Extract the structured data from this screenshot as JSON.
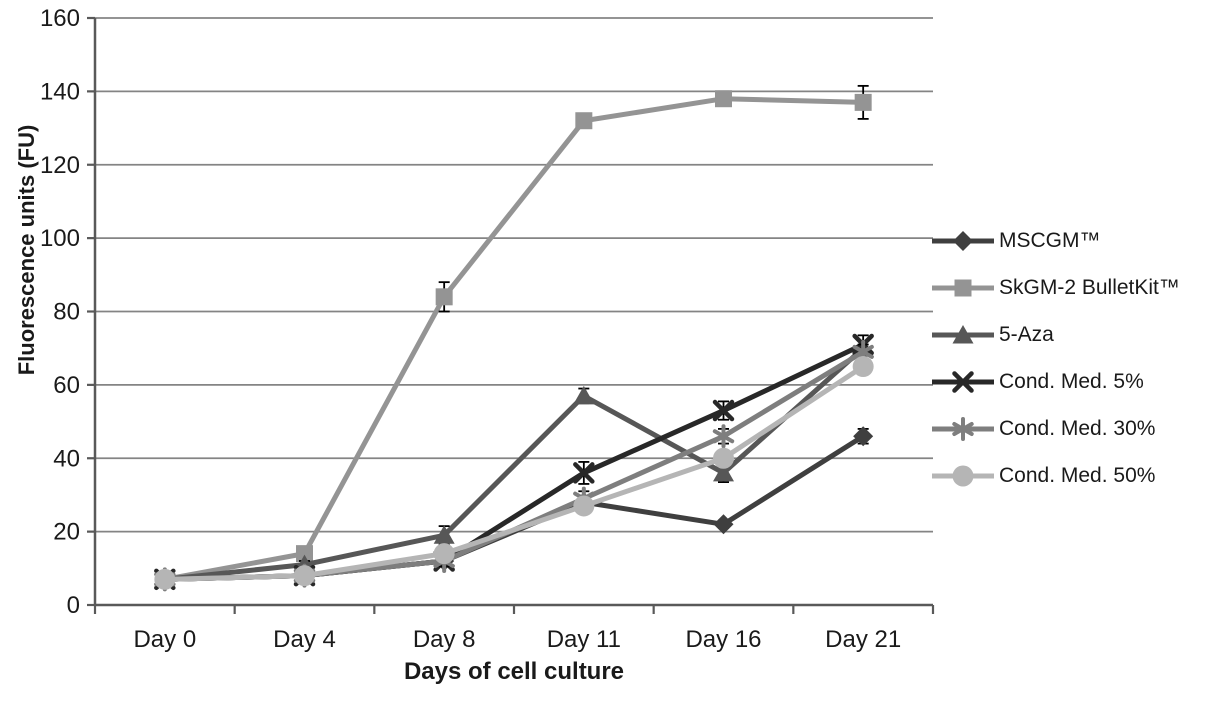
{
  "chart_data": {
    "type": "line",
    "title": "",
    "xlabel": "Days of cell culture",
    "ylabel": "Fluorescence units (FU)",
    "categories": [
      "Day 0",
      "Day 4",
      "Day 8",
      "Day 11",
      "Day 16",
      "Day 21"
    ],
    "ylim": [
      0,
      160
    ],
    "ytick_step": 20,
    "yticks": [
      0,
      20,
      40,
      60,
      80,
      100,
      120,
      140,
      160
    ],
    "grid": true,
    "legend_position": "right",
    "axis_color": "#595959",
    "grid_color": "#848484",
    "error_bar_color": "#000000",
    "series": [
      {
        "name": "MSCGM™",
        "marker": "diamond",
        "color": "#3f3f3f",
        "values": [
          7,
          8,
          12,
          28,
          22,
          46
        ],
        "errors": [
          0.5,
          0.5,
          1,
          1,
          1,
          2
        ]
      },
      {
        "name": "SkGM-2 BulletKit™",
        "marker": "square",
        "color": "#949494",
        "values": [
          7,
          14,
          84,
          132,
          138,
          137
        ],
        "errors": [
          1,
          1,
          4,
          1.5,
          2,
          4.5
        ]
      },
      {
        "name": "5-Aza",
        "marker": "triangle",
        "color": "#575757",
        "values": [
          7,
          11,
          19,
          57,
          36,
          70
        ],
        "errors": [
          0.5,
          1,
          2.5,
          2,
          2.5,
          2
        ]
      },
      {
        "name": "Cond. Med. 5%",
        "marker": "x",
        "color": "#282828",
        "values": [
          7,
          8,
          12,
          36,
          53,
          71
        ],
        "errors": [
          0.5,
          1.5,
          1.5,
          3,
          2.5,
          2.5
        ]
      },
      {
        "name": "Cond. Med. 30%",
        "marker": "asterisk",
        "color": "#7e7e7e",
        "values": [
          7,
          8,
          12,
          29,
          46,
          69
        ],
        "errors": [
          0.5,
          1.5,
          1.5,
          2,
          2,
          2
        ]
      },
      {
        "name": "Cond. Med. 50%",
        "marker": "circle",
        "color": "#b5b5b5",
        "values": [
          7,
          8,
          14,
          27,
          40,
          65
        ],
        "errors": [
          0.5,
          1.5,
          1.5,
          1.5,
          1.5,
          2
        ]
      }
    ]
  }
}
